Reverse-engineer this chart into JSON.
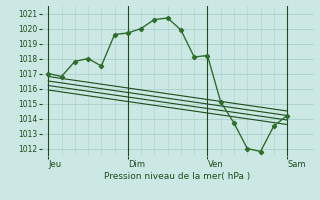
{
  "bg_color": "#cce8e4",
  "grid_color": "#aacfcb",
  "line_color_main": "#2d6e2d",
  "line_color_trend": "#1a4d1a",
  "ylabel_ticks": [
    1012,
    1013,
    1014,
    1015,
    1016,
    1017,
    1018,
    1019,
    1020,
    1021
  ],
  "ylim": [
    1011.5,
    1021.5
  ],
  "xlabel": "Pression niveau de la mer( hPa )",
  "day_labels": [
    "Jeu",
    "Dim",
    "Ven",
    "Sam"
  ],
  "day_positions": [
    0,
    36,
    72,
    108
  ],
  "xlim": [
    -3,
    120
  ],
  "series1_x": [
    0,
    6,
    12,
    18,
    24,
    30,
    36,
    42,
    48,
    54,
    60,
    66,
    72,
    78,
    84,
    90,
    96,
    102,
    108
  ],
  "series1_y": [
    1017.0,
    1016.8,
    1017.8,
    1018.0,
    1017.5,
    1019.6,
    1019.7,
    1020.0,
    1020.6,
    1020.7,
    1019.9,
    1018.1,
    1018.2,
    1015.1,
    1013.7,
    1012.0,
    1011.8,
    1013.5,
    1014.2
  ],
  "trend1_x": [
    0,
    108
  ],
  "trend1_y": [
    1016.8,
    1014.5
  ],
  "trend2_x": [
    0,
    108
  ],
  "trend2_y": [
    1016.5,
    1014.2
  ],
  "trend3_x": [
    0,
    108
  ],
  "trend3_y": [
    1016.2,
    1013.9
  ],
  "trend4_x": [
    0,
    108
  ],
  "trend4_y": [
    1015.9,
    1013.6
  ],
  "figsize": [
    3.2,
    2.0
  ],
  "dpi": 100
}
